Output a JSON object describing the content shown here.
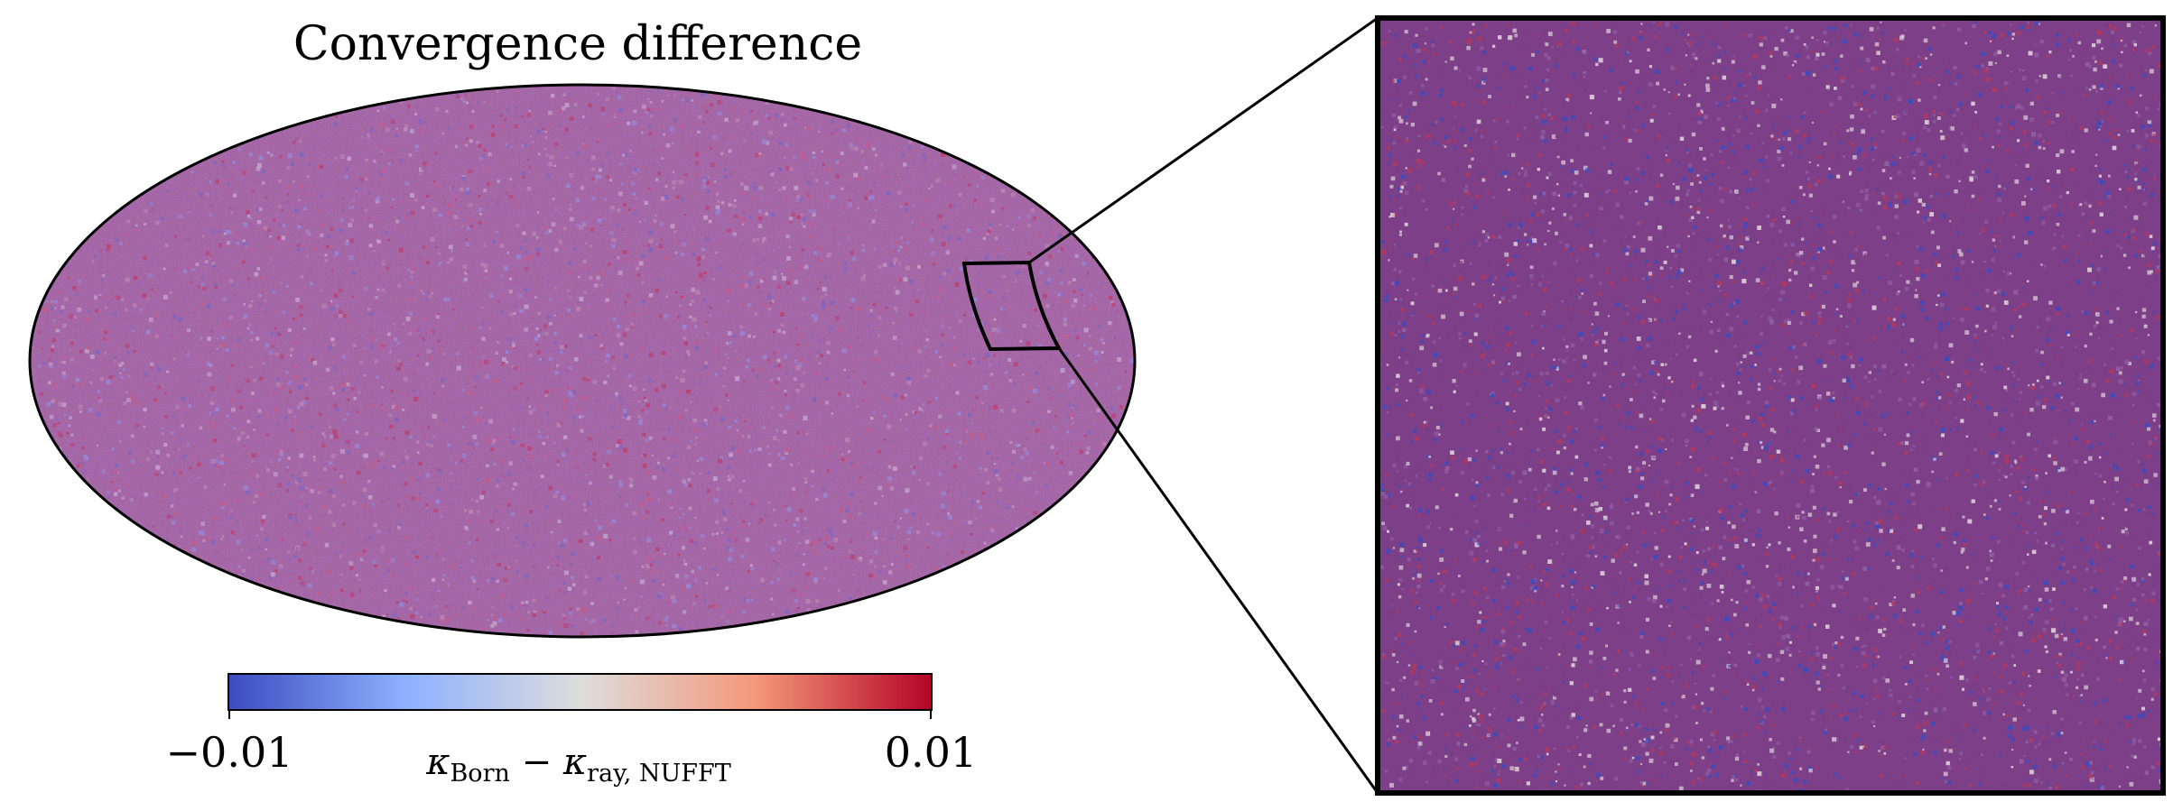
{
  "figure": {
    "title": "Convergence difference",
    "colorbar": {
      "min_label": "−0.01",
      "max_label": "0.01",
      "min_value": -0.01,
      "max_value": 0.01,
      "label_parts": {
        "k1": "κ",
        "sub1": "Born",
        "minus": " − ",
        "k2": "κ",
        "sub2": "ray, NUFFT"
      },
      "colormap": "coolwarm",
      "colors": [
        "#3b4cc0",
        "#8db0fe",
        "#dddddd",
        "#f4987a",
        "#b40426"
      ]
    },
    "map": {
      "projection": "mollweide",
      "palette": [
        "#3b4cc0",
        "#6f8ff0",
        "#c9c5dc",
        "#b48aa6",
        "#8a3f83",
        "#c2385a",
        "#b40426"
      ]
    },
    "zoom": {
      "palette": [
        "#3b4cc0",
        "#8f5ea3",
        "#7a3d86",
        "#b23a5c",
        "#d9cad6"
      ]
    }
  }
}
